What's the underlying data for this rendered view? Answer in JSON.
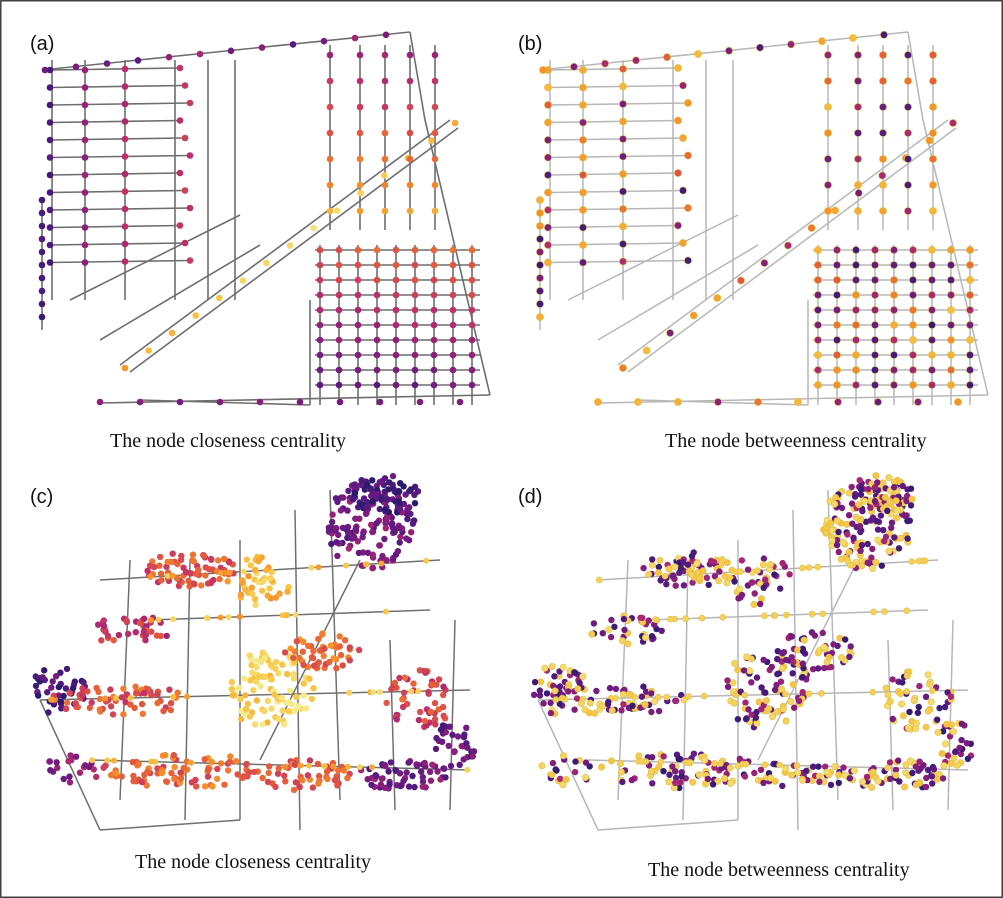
{
  "panels": [
    {
      "label": "(a)",
      "caption": "The node closeness centrality"
    },
    {
      "label": "(b)",
      "caption": "The node betweenness centrality"
    },
    {
      "label": "(c)",
      "caption": "The node closeness centrality"
    },
    {
      "label": "(d)",
      "caption": "The node betweenness centrality"
    }
  ],
  "colors": {
    "colormap": [
      "#2a1b6e",
      "#5a1a82",
      "#8c1f7a",
      "#c0306a",
      "#e45a3c",
      "#f5922a",
      "#f9c341",
      "#f4ec8c"
    ],
    "road_dark": "#6e6e6e",
    "road_light": "#b7b7b7",
    "node_outline_b": "#d9c24a"
  }
}
